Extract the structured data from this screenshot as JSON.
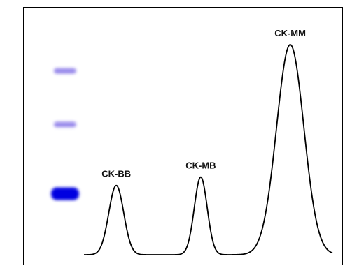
{
  "chart_data": {
    "type": "line",
    "title": "",
    "xlabel": "",
    "ylabel": "",
    "grid": false,
    "legend": "none",
    "peaks": [
      {
        "label": "CK-BB",
        "position": 0.13,
        "height": 0.33
      },
      {
        "label": "CK-MB",
        "position": 0.47,
        "height": 0.37
      },
      {
        "label": "CK-MM",
        "position": 0.83,
        "height": 1.0
      }
    ],
    "xlim": [
      0,
      1
    ],
    "ylim": [
      0,
      1.1
    ],
    "gel_bands": [
      {
        "position": 0.32,
        "intensity": "strong",
        "color": "#0000e0"
      },
      {
        "position": 0.63,
        "intensity": "faint",
        "color": "#8877e8"
      },
      {
        "position": 0.87,
        "intensity": "faint",
        "color": "#8877e8"
      }
    ],
    "line_color": "#000000"
  }
}
